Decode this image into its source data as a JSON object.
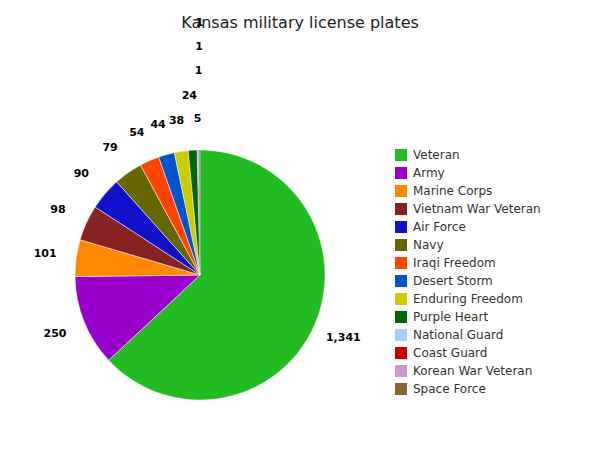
{
  "chart_data": {
    "type": "pie",
    "title": "Kansas military license plates",
    "categories": [
      "Veteran",
      "Army",
      "Marine Corps",
      "Vietnam War Veteran",
      "Air Force",
      "Navy",
      "Iraqi Freedom",
      "Desert Storm",
      "Enduring Freedom",
      "Purple Heart",
      "National Guard",
      "Coast Guard",
      "Korean War Veteran",
      "Space Force"
    ],
    "values": [
      1341,
      250,
      101,
      98,
      90,
      79,
      54,
      44,
      38,
      24,
      5,
      1,
      1,
      1
    ],
    "value_labels": [
      "1,341",
      "250",
      "101",
      "98",
      "90",
      "79",
      "54",
      "44",
      "38",
      "24",
      "5",
      "1",
      "1",
      "1"
    ],
    "colors": [
      "#22bb22",
      "#9900cc",
      "#ff8800",
      "#882222",
      "#1111cc",
      "#666600",
      "#ff4400",
      "#0055cc",
      "#cccc00",
      "#006600",
      "#aaccff",
      "#cc0000",
      "#cc99cc",
      "#886633"
    ],
    "data_labels": true,
    "legend": "right"
  }
}
